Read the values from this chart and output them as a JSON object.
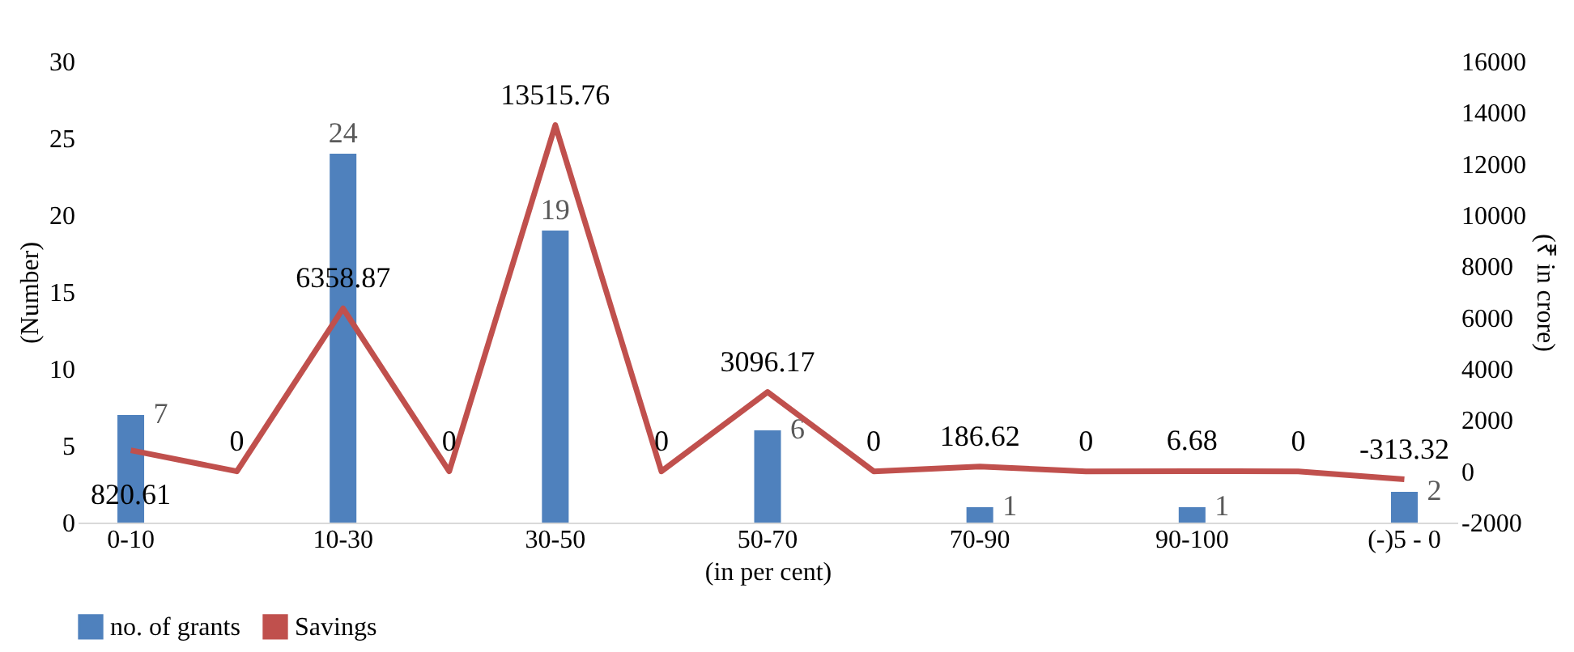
{
  "chart_data": {
    "type": "bar",
    "categories": [
      "0-10",
      null,
      "10-30",
      null,
      "30-50",
      null,
      "50-70",
      null,
      "70-90",
      null,
      "90-100",
      null,
      "(-)5 - 0"
    ],
    "xlabel": "(in per cent)",
    "ylabel": "(Number)",
    "y2label": "(₹ in crore)",
    "ylim": [
      0,
      30
    ],
    "yticks": [
      0,
      5,
      10,
      15,
      20,
      25,
      30
    ],
    "y2lim": [
      -2000,
      16000
    ],
    "y2ticks": [
      -2000,
      0,
      2000,
      4000,
      6000,
      8000,
      10000,
      12000,
      14000,
      16000
    ],
    "legend": "bottom",
    "grid": false,
    "series": [
      {
        "name": "no. of grants",
        "color": "#4f81bd",
        "values": [
          7,
          null,
          24,
          null,
          19,
          null,
          6,
          null,
          1,
          null,
          1,
          null,
          2
        ],
        "value_labels": [
          "7",
          null,
          "24",
          null,
          "19",
          null,
          "6",
          null,
          "1",
          null,
          "1",
          null,
          "2"
        ]
      },
      {
        "name": "Savings",
        "type": "line",
        "axis": "y2",
        "color": "#c0504d",
        "values": [
          820.61,
          0,
          6358.87,
          0,
          13515.76,
          0,
          3096.17,
          0,
          186.62,
          0,
          6.68,
          0,
          -313.32
        ],
        "value_labels": [
          "820.61",
          "0",
          "6358.87",
          "0",
          "13515.76",
          "0",
          "3096.17",
          "0",
          "186.62",
          "0",
          "6.68",
          "0",
          "-313.32"
        ]
      }
    ]
  }
}
